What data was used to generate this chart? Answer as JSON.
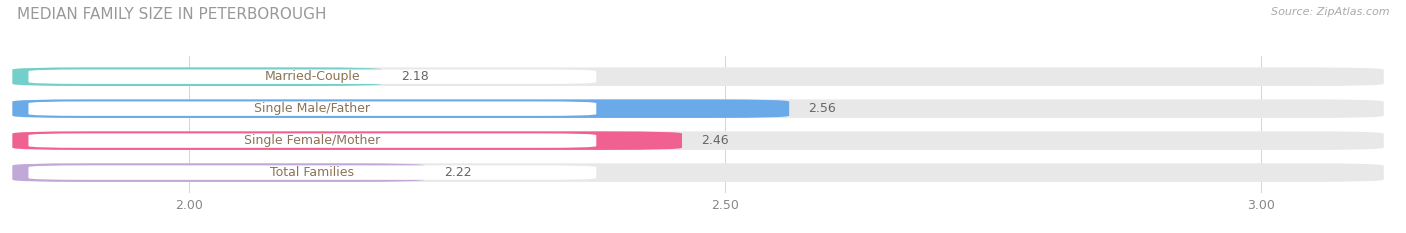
{
  "title": "MEDIAN FAMILY SIZE IN PETERBOROUGH",
  "source": "Source: ZipAtlas.com",
  "categories": [
    "Married-Couple",
    "Single Male/Father",
    "Single Female/Mother",
    "Total Families"
  ],
  "values": [
    2.18,
    2.56,
    2.46,
    2.22
  ],
  "bar_colors": [
    "#72cfc9",
    "#6aaae8",
    "#f06090",
    "#c0a8d8"
  ],
  "bar_bg_color": "#e8e8e8",
  "label_bg_color": "#ffffff",
  "xlim_min": 1.83,
  "xlim_max": 3.12,
  "xticks": [
    2.0,
    2.5,
    3.0
  ],
  "xtick_labels": [
    "2.00",
    "2.50",
    "3.00"
  ],
  "value_fontsize": 9,
  "label_fontsize": 9,
  "title_fontsize": 11,
  "bar_height": 0.58,
  "background_color": "#ffffff",
  "label_text_color": "#8B7355",
  "value_text_color": "#666666",
  "grid_color": "#d8d8d8",
  "title_color": "#999999"
}
